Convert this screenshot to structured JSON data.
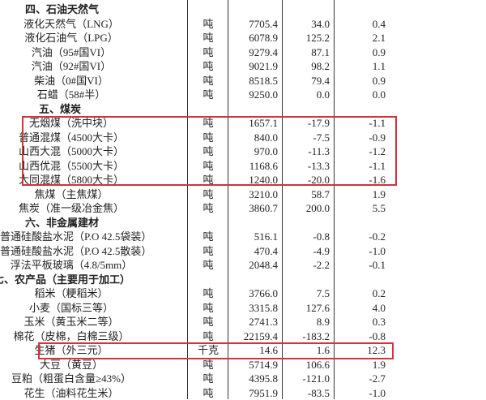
{
  "highlight_color": "#d0343c",
  "rows": [
    {
      "type": "section",
      "label": "四、石油天然气"
    },
    {
      "name": "液化天然气（LNG）",
      "unit": "吨",
      "price": "7705.4",
      "change": "34.0",
      "pct": "0.4"
    },
    {
      "name": "液化石油气（LPG）",
      "unit": "吨",
      "price": "6078.9",
      "change": "125.2",
      "pct": "2.1"
    },
    {
      "name": "汽油（95#国VI）",
      "unit": "吨",
      "price": "9279.4",
      "change": "87.1",
      "pct": "0.9"
    },
    {
      "name": "汽油（92#国VI）",
      "unit": "吨",
      "price": "9021.9",
      "change": "98.2",
      "pct": "1.1"
    },
    {
      "name": "柴油（0#国VI）",
      "unit": "吨",
      "price": "8518.5",
      "change": "79.4",
      "pct": "0.9"
    },
    {
      "name": "石蜡（58#半）",
      "unit": "吨",
      "price": "9250.0",
      "change": "0.0",
      "pct": "0.0"
    },
    {
      "type": "section",
      "label": "五、煤炭"
    },
    {
      "name": "无烟煤（洗中块）",
      "unit": "吨",
      "price": "1657.1",
      "change": "-17.9",
      "pct": "-1.1"
    },
    {
      "name": "普通混煤（4500大卡）",
      "unit": "吨",
      "price": "840.0",
      "change": "-7.5",
      "pct": "-0.9"
    },
    {
      "name": "山西大混（5000大卡）",
      "unit": "吨",
      "price": "970.0",
      "change": "-11.3",
      "pct": "-1.2"
    },
    {
      "name": "山西优混（5500大卡）",
      "unit": "吨",
      "price": "1168.6",
      "change": "-13.3",
      "pct": "-1.1"
    },
    {
      "name": "大同混煤（5800大卡）",
      "unit": "吨",
      "price": "1240.0",
      "change": "-20.0",
      "pct": "-1.6"
    },
    {
      "name": "焦煤（主焦煤）",
      "unit": "吨",
      "price": "3210.0",
      "change": "58.7",
      "pct": "1.9"
    },
    {
      "name": "焦炭（准一级冶金焦）",
      "unit": "吨",
      "price": "3860.7",
      "change": "200.0",
      "pct": "5.5"
    },
    {
      "type": "section",
      "label": "六、非金属建材"
    },
    {
      "name": "普通硅酸盐水泥（P.O 42.5袋装）",
      "unit": "吨",
      "price": "516.1",
      "change": "-0.8",
      "pct": "-0.2"
    },
    {
      "name": "普通硅酸盐水泥（P.O 42.5散装）",
      "unit": "吨",
      "price": "470.4",
      "change": "-4.9",
      "pct": "-1.0"
    },
    {
      "name": "浮法平板玻璃（4.8/5mm）",
      "unit": "吨",
      "price": "2048.4",
      "change": "-2.2",
      "pct": "-0.1"
    },
    {
      "type": "section",
      "label": "七、农产品（主要用于加工）"
    },
    {
      "name": "稻米（粳稻米）",
      "unit": "吨",
      "price": "3766.0",
      "change": "7.5",
      "pct": "0.2"
    },
    {
      "name": "小麦（国标三等）",
      "unit": "吨",
      "price": "3315.8",
      "change": "127.6",
      "pct": "4.0"
    },
    {
      "name": "玉米（黄玉米二等）",
      "unit": "吨",
      "price": "2741.3",
      "change": "8.9",
      "pct": "0.3"
    },
    {
      "name": "棉花（皮棉，白棉三级）",
      "unit": "吨",
      "price": "22159.4",
      "change": "-183.2",
      "pct": "-0.8"
    },
    {
      "name": "生猪（外三元）",
      "unit": "千克",
      "price": "14.6",
      "change": "1.6",
      "pct": "12.3"
    },
    {
      "name": "大豆（黄豆）",
      "unit": "吨",
      "price": "5714.9",
      "change": "106.6",
      "pct": "1.9"
    },
    {
      "name": "豆粕（粗蛋白含量≥43%）",
      "unit": "吨",
      "price": "4395.8",
      "change": "-121.0",
      "pct": "-2.7"
    },
    {
      "name": "花生（油料花生米）",
      "unit": "吨",
      "price": "7951.9",
      "change": "-83.5",
      "pct": "-1.0"
    }
  ]
}
